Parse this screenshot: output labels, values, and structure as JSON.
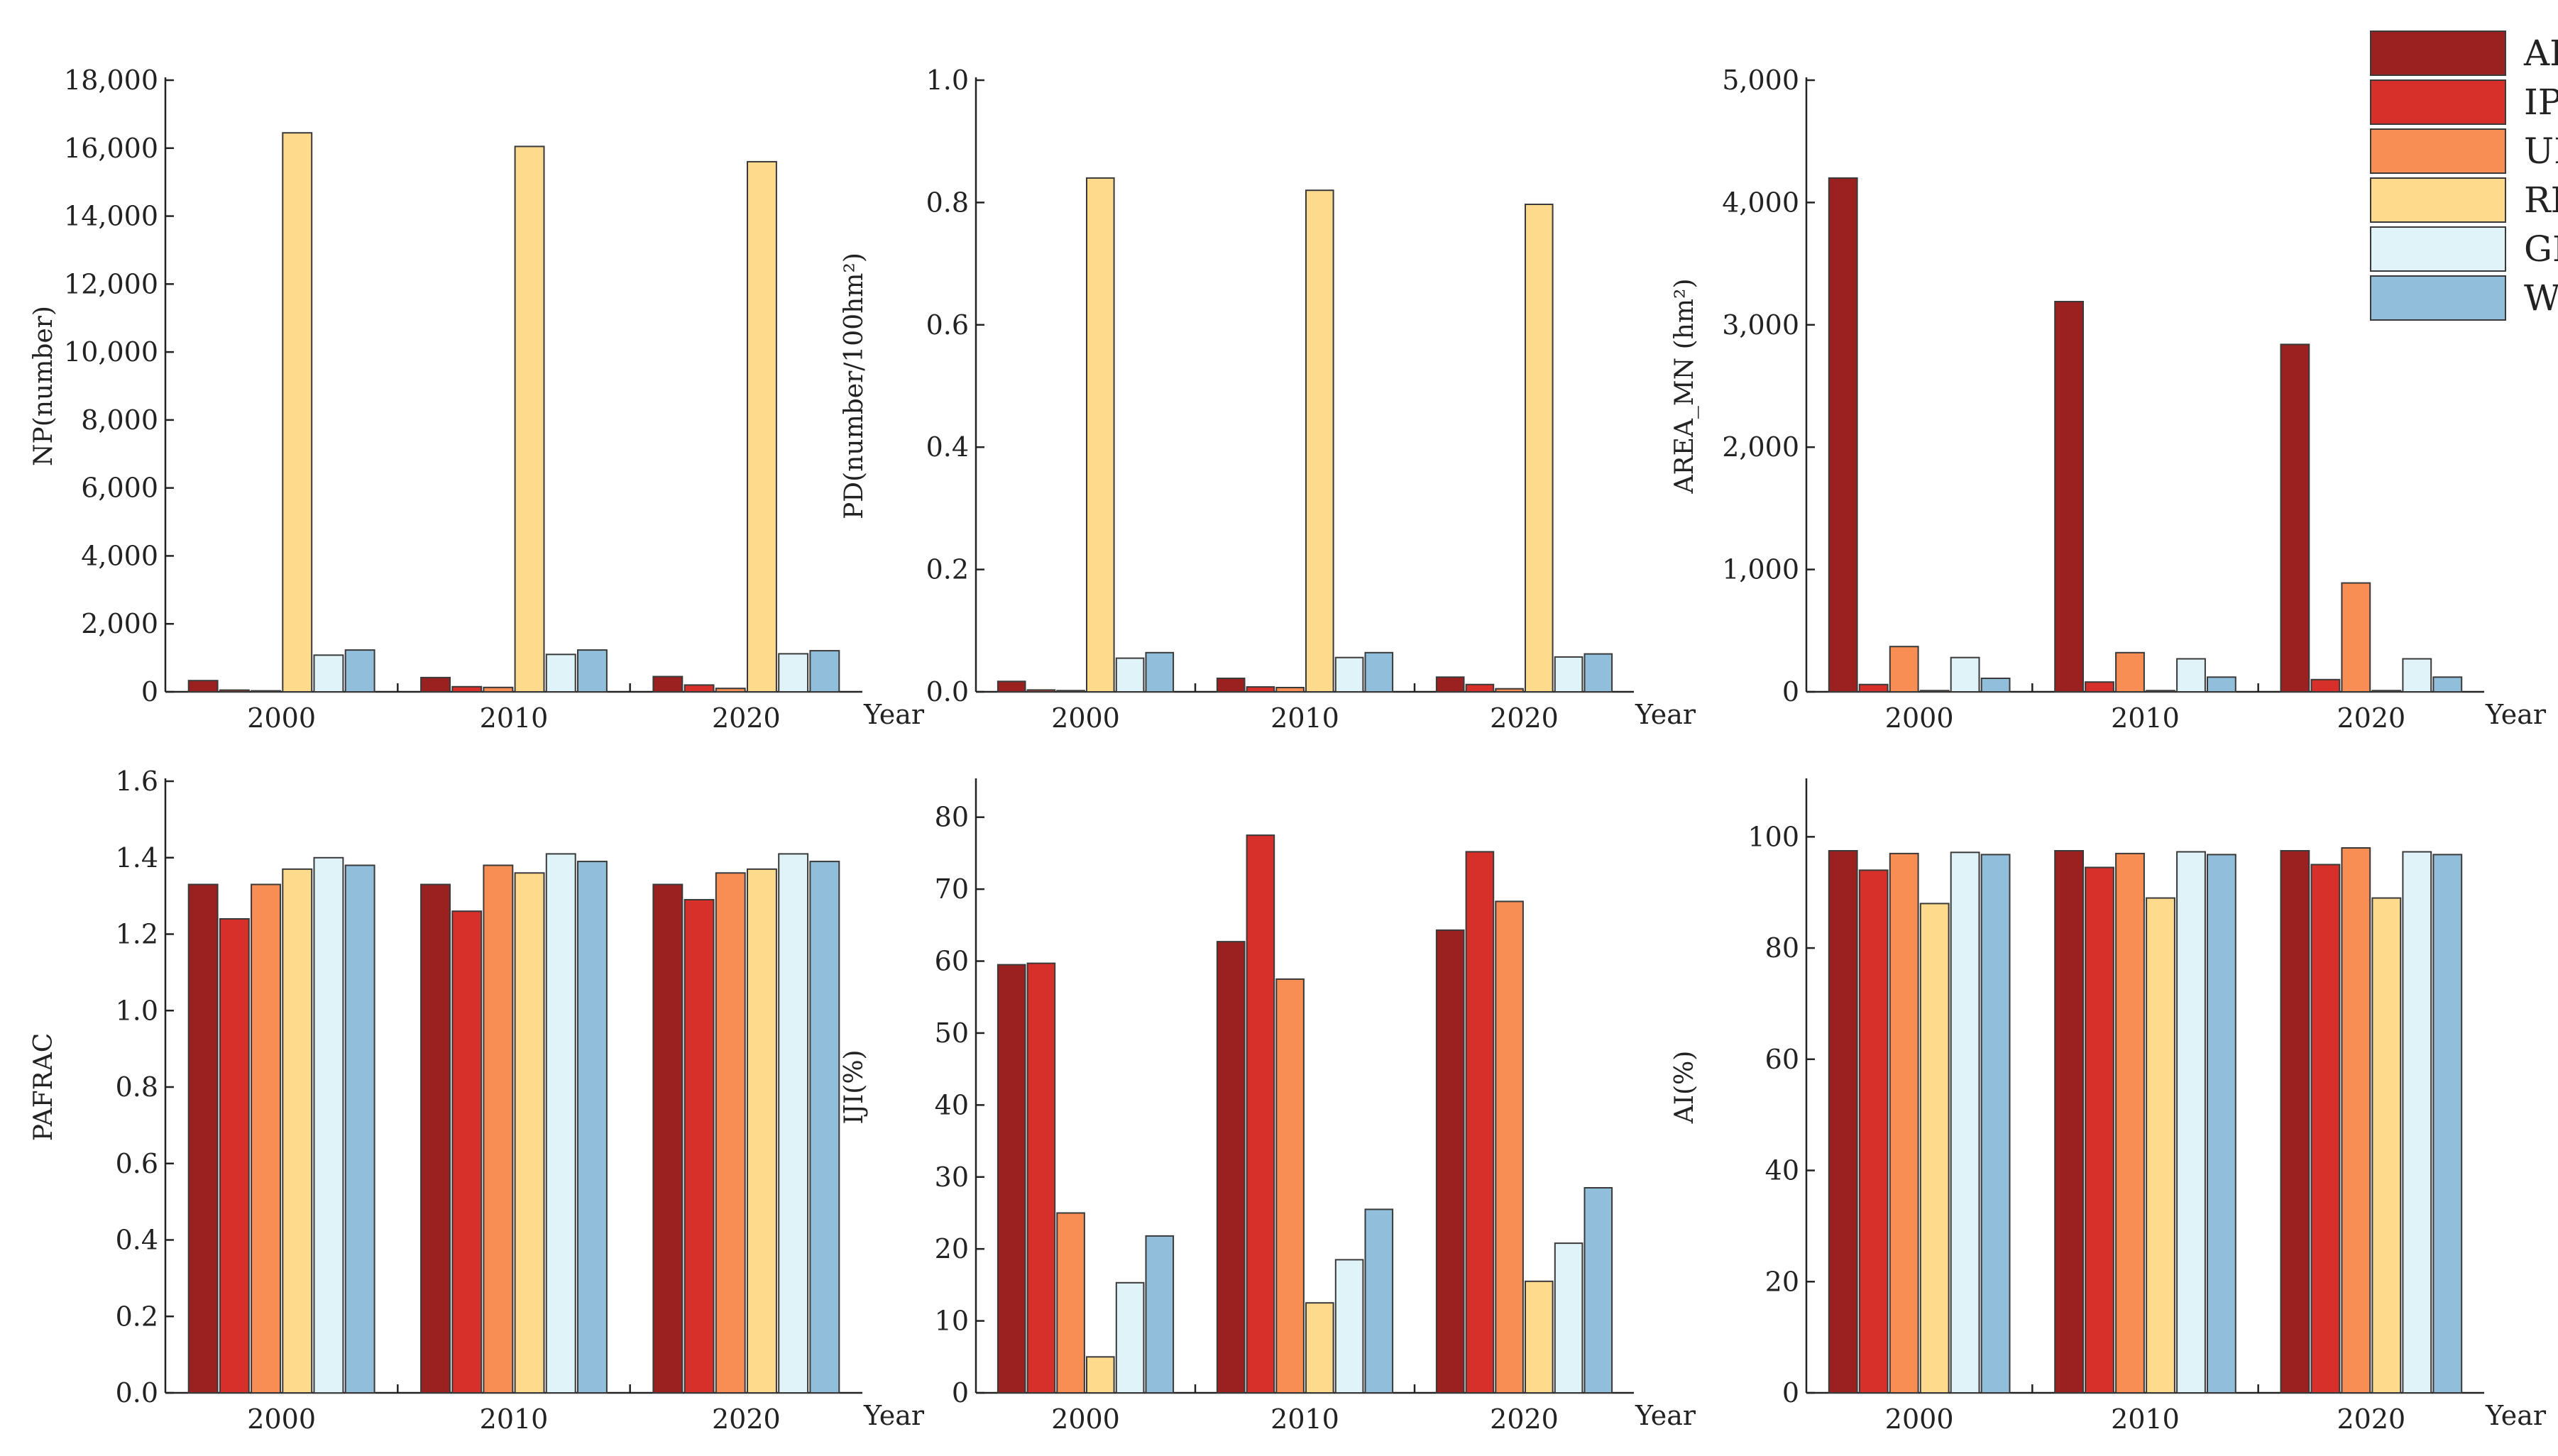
{
  "legend": {
    "items": [
      {
        "name": "APS",
        "color": "#9b2121"
      },
      {
        "name": "IPS",
        "color": "#d7302a"
      },
      {
        "name": "ULS",
        "color": "#f88e54"
      },
      {
        "name": "RLS",
        "color": "#fedb8c"
      },
      {
        "name": "GES",
        "color": "#e0f3f8"
      },
      {
        "name": "WES",
        "color": "#91bfdb"
      }
    ]
  },
  "chart_data": [
    {
      "type": "bar",
      "ylabel": "NP(number)",
      "xlabel": "Year",
      "categories": [
        "2000",
        "2010",
        "2020"
      ],
      "ylim": [
        0,
        18000
      ],
      "yticks": [
        "0",
        "2,000",
        "4,000",
        "6,000",
        "8,000",
        "10,000",
        "12,000",
        "14,000",
        "16,000",
        "18,000"
      ],
      "series": [
        {
          "name": "APS",
          "values": [
            330,
            420,
            450
          ]
        },
        {
          "name": "IPS",
          "values": [
            50,
            150,
            200
          ]
        },
        {
          "name": "ULS",
          "values": [
            30,
            130,
            100
          ]
        },
        {
          "name": "RLS",
          "values": [
            16450,
            16050,
            15600
          ]
        },
        {
          "name": "GES",
          "values": [
            1080,
            1100,
            1120
          ]
        },
        {
          "name": "WES",
          "values": [
            1230,
            1230,
            1210
          ]
        }
      ]
    },
    {
      "type": "bar",
      "ylabel": "PD(number/100hm²)",
      "xlabel": "Year",
      "categories": [
        "2000",
        "2010",
        "2020"
      ],
      "ylim": [
        0,
        1.0
      ],
      "yticks": [
        "0.0",
        "0.2",
        "0.4",
        "0.6",
        "0.8",
        "1.0"
      ],
      "series": [
        {
          "name": "APS",
          "values": [
            0.017,
            0.022,
            0.024
          ]
        },
        {
          "name": "IPS",
          "values": [
            0.003,
            0.008,
            0.012
          ]
        },
        {
          "name": "ULS",
          "values": [
            0.002,
            0.007,
            0.005
          ]
        },
        {
          "name": "RLS",
          "values": [
            0.84,
            0.82,
            0.797
          ]
        },
        {
          "name": "GES",
          "values": [
            0.055,
            0.056,
            0.057
          ]
        },
        {
          "name": "WES",
          "values": [
            0.064,
            0.064,
            0.062
          ]
        }
      ]
    },
    {
      "type": "bar",
      "ylabel": "AREA_MN (hm²)",
      "xlabel": "Year",
      "categories": [
        "2000",
        "2010",
        "2020"
      ],
      "ylim": [
        0,
        5000
      ],
      "yticks": [
        "0",
        "1,000",
        "2,000",
        "3,000",
        "4,000",
        "5,000"
      ],
      "series": [
        {
          "name": "APS",
          "values": [
            4200,
            3190,
            2840
          ]
        },
        {
          "name": "IPS",
          "values": [
            60,
            80,
            100
          ]
        },
        {
          "name": "ULS",
          "values": [
            370,
            320,
            890
          ]
        },
        {
          "name": "RLS",
          "values": [
            10,
            10,
            10
          ]
        },
        {
          "name": "GES",
          "values": [
            280,
            270,
            270
          ]
        },
        {
          "name": "WES",
          "values": [
            110,
            120,
            120
          ]
        }
      ]
    },
    {
      "type": "bar",
      "ylabel": "PAFRAC",
      "xlabel": "Year",
      "categories": [
        "2000",
        "2010",
        "2020"
      ],
      "ylim": [
        0,
        1.6
      ],
      "yticks": [
        "0.0",
        "0.2",
        "0.4",
        "0.6",
        "0.8",
        "1.0",
        "1.2",
        "1.4",
        "1.6"
      ],
      "series": [
        {
          "name": "APS",
          "values": [
            1.33,
            1.33,
            1.33
          ]
        },
        {
          "name": "IPS",
          "values": [
            1.24,
            1.26,
            1.29
          ]
        },
        {
          "name": "ULS",
          "values": [
            1.33,
            1.38,
            1.36
          ]
        },
        {
          "name": "RLS",
          "values": [
            1.37,
            1.36,
            1.37
          ]
        },
        {
          "name": "GES",
          "values": [
            1.4,
            1.41,
            1.41
          ]
        },
        {
          "name": "WES",
          "values": [
            1.38,
            1.39,
            1.39
          ]
        }
      ]
    },
    {
      "type": "bar",
      "ylabel": "IJI(%)",
      "xlabel": "Year",
      "categories": [
        "2000",
        "2010",
        "2020"
      ],
      "ylim": [
        0,
        85
      ],
      "yticks": [
        "0",
        "10",
        "20",
        "30",
        "40",
        "50",
        "60",
        "70",
        "80"
      ],
      "series": [
        {
          "name": "APS",
          "values": [
            59.5,
            62.7,
            64.3
          ]
        },
        {
          "name": "IPS",
          "values": [
            59.7,
            77.5,
            75.2
          ]
        },
        {
          "name": "ULS",
          "values": [
            25.0,
            57.5,
            68.3
          ]
        },
        {
          "name": "RLS",
          "values": [
            5.0,
            12.5,
            15.5
          ]
        },
        {
          "name": "GES",
          "values": [
            15.3,
            18.5,
            20.8
          ]
        },
        {
          "name": "WES",
          "values": [
            21.8,
            25.5,
            28.5
          ]
        }
      ]
    },
    {
      "type": "bar",
      "ylabel": "AI(%)",
      "xlabel": "Year",
      "categories": [
        "2000",
        "2010",
        "2020"
      ],
      "ylim": [
        0,
        110
      ],
      "yticks": [
        "0",
        "20",
        "40",
        "60",
        "80",
        "100"
      ],
      "series": [
        {
          "name": "APS",
          "values": [
            97.5,
            97.5,
            97.5
          ]
        },
        {
          "name": "IPS",
          "values": [
            94.0,
            94.5,
            95.0
          ]
        },
        {
          "name": "ULS",
          "values": [
            97.0,
            97.0,
            98.0
          ]
        },
        {
          "name": "RLS",
          "values": [
            88.0,
            89.0,
            89.0
          ]
        },
        {
          "name": "GES",
          "values": [
            97.2,
            97.3,
            97.3
          ]
        },
        {
          "name": "WES",
          "values": [
            96.8,
            96.8,
            96.8
          ]
        }
      ]
    }
  ]
}
